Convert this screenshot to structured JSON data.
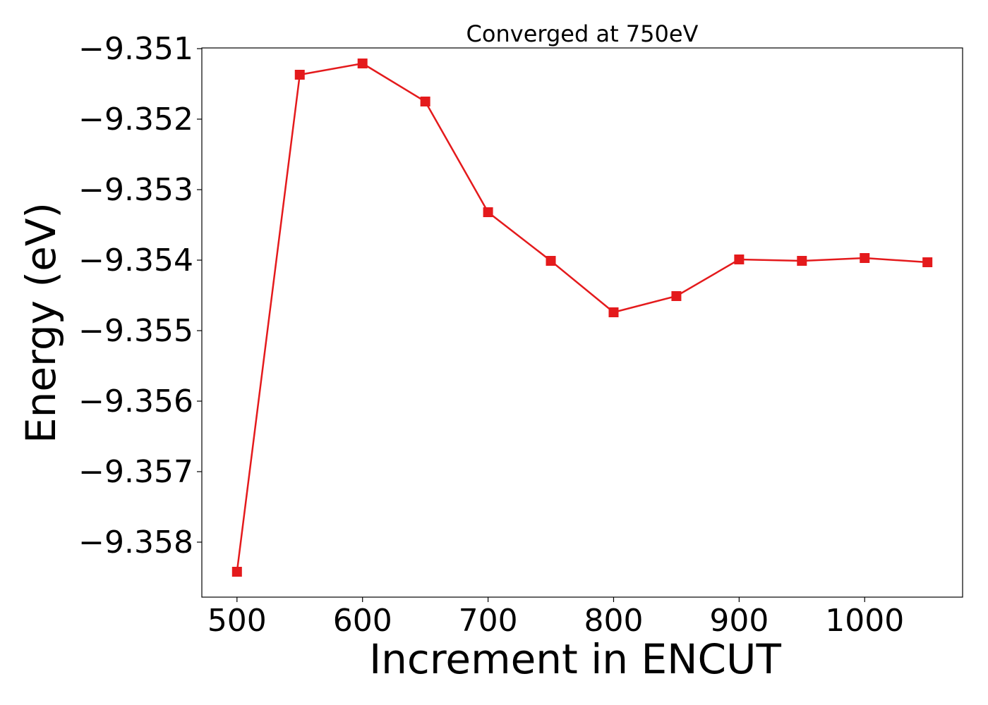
{
  "chart_data": {
    "type": "line",
    "title": "Converged at 750eV",
    "xlabel": "Increment in ENCUT",
    "ylabel": "Energy (eV)",
    "x": [
      500,
      550,
      600,
      650,
      700,
      750,
      800,
      850,
      900,
      950,
      1000,
      1050
    ],
    "series": [
      {
        "values": [
          -9.35842,
          -9.35137,
          -9.35121,
          -9.35175,
          -9.35332,
          -9.35401,
          -9.35474,
          -9.35451,
          -9.35399,
          -9.35401,
          -9.35397,
          -9.35403
        ],
        "color": "#e41a1c",
        "marker": "square"
      }
    ],
    "xlim": [
      472,
      1078
    ],
    "ylim": [
      -9.35878,
      -9.35099
    ],
    "xticks": [
      500,
      600,
      700,
      800,
      900,
      1000
    ],
    "xtick_labels": [
      "500",
      "600",
      "700",
      "800",
      "900",
      "1000"
    ],
    "yticks": [
      -9.351,
      -9.352,
      -9.353,
      -9.354,
      -9.355,
      -9.356,
      -9.357,
      -9.358
    ],
    "ytick_labels": [
      "−9.351",
      "−9.352",
      "−9.353",
      "−9.354",
      "−9.355",
      "−9.356",
      "−9.357",
      "−9.358"
    ],
    "grid": false,
    "legend": "none"
  }
}
